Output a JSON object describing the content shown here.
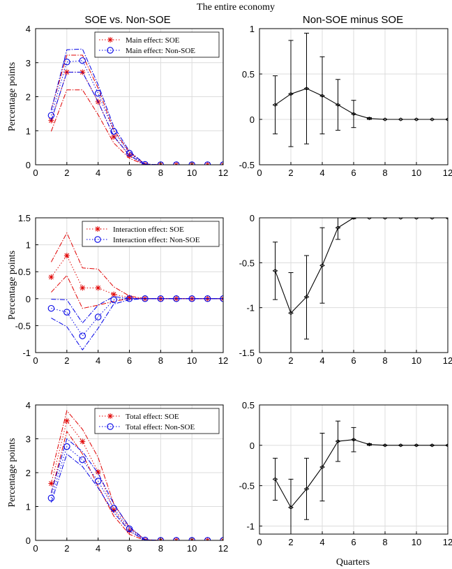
{
  "figure": {
    "suptitle": "The entire economy",
    "col_titles": [
      "SOE vs. Non-SOE",
      "Non-SOE minus SOE"
    ],
    "ylabel": "Percentage points",
    "xlabel_bottom_right": "Quarters",
    "colors": {
      "soe": "#e00000",
      "nonsoe": "#0000e6",
      "diff": "#000000",
      "grid": "#dcdcdc"
    }
  },
  "chart_data": [
    {
      "id": "main-effect",
      "type": "line",
      "x": [
        1,
        2,
        3,
        4,
        5,
        6,
        7,
        8,
        9,
        10,
        11,
        12
      ],
      "xlim": [
        0,
        12
      ],
      "xticks": [
        0,
        2,
        4,
        6,
        8,
        10,
        12
      ],
      "ylim": [
        0,
        4
      ],
      "yticks": [
        0,
        1,
        2,
        3,
        4
      ],
      "ytick_labels": [
        "0",
        "1",
        "2",
        "3",
        "4"
      ],
      "grid": true,
      "legend": "top-right",
      "series": [
        {
          "name": "Main effect: SOE",
          "marker": "*",
          "color": "#e00000",
          "values": [
            1.3,
            2.72,
            2.72,
            1.85,
            0.82,
            0.27,
            0.0,
            0.0,
            0.0,
            0.0,
            0.0,
            0.0
          ],
          "upper": [
            1.62,
            3.22,
            3.22,
            2.25,
            1.02,
            0.37,
            0.02,
            0.0,
            0.0,
            0.0,
            0.0,
            0.0
          ],
          "lower": [
            0.98,
            2.2,
            2.2,
            1.47,
            0.64,
            0.19,
            0.0,
            0.0,
            0.0,
            0.0,
            0.0,
            0.0
          ]
        },
        {
          "name": "Main effect: Non-SOE",
          "marker": "o",
          "color": "#0000e6",
          "values": [
            1.45,
            3.02,
            3.06,
            2.1,
            0.98,
            0.34,
            0.01,
            0.0,
            0.0,
            0.0,
            0.0,
            0.0
          ],
          "upper": [
            1.6,
            3.38,
            3.4,
            2.35,
            1.12,
            0.4,
            0.02,
            0.0,
            0.0,
            0.0,
            0.0,
            0.0
          ],
          "lower": [
            1.3,
            2.72,
            2.72,
            1.85,
            0.84,
            0.28,
            0.0,
            0.0,
            0.0,
            0.0,
            0.0,
            0.0
          ]
        }
      ]
    },
    {
      "id": "main-diff",
      "type": "line",
      "x": [
        1,
        2,
        3,
        4,
        5,
        6,
        7,
        8,
        9,
        10,
        11,
        12
      ],
      "xlim": [
        0,
        12
      ],
      "xticks": [
        0,
        2,
        4,
        6,
        8,
        10,
        12
      ],
      "ylim": [
        -0.5,
        1
      ],
      "yticks": [
        -0.5,
        0,
        0.5,
        1
      ],
      "ytick_labels": [
        "-0.5",
        "0",
        "0.5",
        "1"
      ],
      "grid": true,
      "series": [
        {
          "color": "#000000",
          "values": [
            0.16,
            0.28,
            0.34,
            0.26,
            0.16,
            0.06,
            0.01,
            0.0,
            0.0,
            0.0,
            0.0,
            0.0
          ],
          "upper": [
            0.48,
            0.87,
            0.95,
            0.69,
            0.44,
            0.21,
            0.02,
            0.0,
            0.0,
            0.0,
            0.0,
            0.0
          ],
          "lower": [
            -0.16,
            -0.3,
            -0.27,
            -0.16,
            -0.12,
            -0.09,
            0.0,
            0.0,
            0.0,
            0.0,
            0.0,
            0.0
          ]
        }
      ]
    },
    {
      "id": "interaction-effect",
      "type": "line",
      "x": [
        1,
        2,
        3,
        4,
        5,
        6,
        7,
        8,
        9,
        10,
        11,
        12
      ],
      "xlim": [
        0,
        12
      ],
      "xticks": [
        0,
        2,
        4,
        6,
        8,
        10,
        12
      ],
      "ylim": [
        -1,
        1.5
      ],
      "yticks": [
        -1,
        -0.5,
        0,
        0.5,
        1,
        1.5
      ],
      "ytick_labels": [
        "-1",
        "-0.5",
        "0",
        "0.5",
        "1",
        "1.5"
      ],
      "grid": true,
      "legend": "top-right",
      "series": [
        {
          "name": "Interaction effect: SOE",
          "marker": "*",
          "color": "#e00000",
          "values": [
            0.4,
            0.8,
            0.2,
            0.2,
            0.08,
            0.02,
            0.0,
            0.0,
            0.0,
            0.0,
            0.0,
            0.0
          ],
          "upper": [
            0.68,
            1.22,
            0.57,
            0.55,
            0.22,
            0.05,
            0.0,
            0.0,
            0.0,
            0.0,
            0.0,
            0.0
          ],
          "lower": [
            0.12,
            0.43,
            -0.18,
            -0.12,
            -0.05,
            0.0,
            0.0,
            0.0,
            0.0,
            0.0,
            0.0,
            0.0
          ]
        },
        {
          "name": "Interaction effect: Non-SOE",
          "marker": "o",
          "color": "#0000e6",
          "values": [
            -0.18,
            -0.25,
            -0.69,
            -0.34,
            -0.02,
            0.0,
            0.0,
            0.0,
            0.0,
            0.0,
            0.0,
            0.0
          ],
          "upper": [
            -0.01,
            -0.02,
            -0.45,
            -0.12,
            0.04,
            0.0,
            0.0,
            0.0,
            0.0,
            0.0,
            0.0,
            0.0
          ],
          "lower": [
            -0.36,
            -0.52,
            -0.95,
            -0.55,
            -0.1,
            -0.02,
            0.0,
            0.0,
            0.0,
            0.0,
            0.0,
            0.0
          ]
        }
      ]
    },
    {
      "id": "interaction-diff",
      "type": "line",
      "x": [
        1,
        2,
        3,
        4,
        5,
        6,
        7,
        8,
        9,
        10,
        11,
        12
      ],
      "xlim": [
        0,
        12
      ],
      "xticks": [
        0,
        2,
        4,
        6,
        8,
        10,
        12
      ],
      "ylim": [
        -1.5,
        0
      ],
      "yticks": [
        -1.5,
        -1,
        -0.5,
        0
      ],
      "ytick_labels": [
        "-1.5",
        "-1",
        "-0.5",
        "0"
      ],
      "grid": true,
      "series": [
        {
          "color": "#000000",
          "values": [
            -0.59,
            -1.06,
            -0.88,
            -0.53,
            -0.11,
            0.0,
            0.0,
            0.0,
            0.0,
            0.0,
            0.0,
            0.0
          ],
          "upper": [
            -0.27,
            -0.61,
            -0.42,
            -0.11,
            0.0,
            0.0,
            0.0,
            0.0,
            0.0,
            0.0,
            0.0,
            0.0
          ],
          "lower": [
            -0.91,
            -1.53,
            -1.35,
            -0.95,
            -0.24,
            -0.01,
            0.0,
            0.0,
            0.0,
            0.0,
            0.0,
            0.0
          ]
        }
      ]
    },
    {
      "id": "total-effect",
      "type": "line",
      "x": [
        1,
        2,
        3,
        4,
        5,
        6,
        7,
        8,
        9,
        10,
        11,
        12
      ],
      "xlim": [
        0,
        12
      ],
      "xticks": [
        0,
        2,
        4,
        6,
        8,
        10,
        12
      ],
      "ylim": [
        0,
        4
      ],
      "yticks": [
        0,
        1,
        2,
        3,
        4
      ],
      "ytick_labels": [
        "0",
        "1",
        "2",
        "3",
        "4"
      ],
      "grid": true,
      "legend": "top-right",
      "series": [
        {
          "name": "Total effect: SOE",
          "marker": "*",
          "color": "#e00000",
          "values": [
            1.68,
            3.53,
            2.92,
            2.02,
            0.9,
            0.28,
            0.0,
            0.0,
            0.0,
            0.0,
            0.0,
            0.0
          ],
          "upper": [
            1.95,
            3.83,
            3.28,
            2.45,
            1.08,
            0.38,
            0.02,
            0.0,
            0.0,
            0.0,
            0.0,
            0.0
          ],
          "lower": [
            1.4,
            3.22,
            2.55,
            1.6,
            0.72,
            0.18,
            0.0,
            0.0,
            0.0,
            0.0,
            0.0,
            0.0
          ]
        },
        {
          "name": "Total effect: Non-SOE",
          "marker": "o",
          "color": "#0000e6",
          "values": [
            1.25,
            2.77,
            2.38,
            1.75,
            0.95,
            0.34,
            0.01,
            0.0,
            0.0,
            0.0,
            0.0,
            0.0
          ],
          "upper": [
            1.4,
            3.0,
            2.62,
            1.98,
            1.08,
            0.4,
            0.02,
            0.0,
            0.0,
            0.0,
            0.0,
            0.0
          ],
          "lower": [
            1.12,
            2.55,
            2.18,
            1.55,
            0.82,
            0.28,
            0.0,
            0.0,
            0.0,
            0.0,
            0.0,
            0.0
          ]
        }
      ]
    },
    {
      "id": "total-diff",
      "type": "line",
      "x": [
        1,
        2,
        3,
        4,
        5,
        6,
        7,
        8,
        9,
        10,
        11,
        12
      ],
      "xlim": [
        0,
        12
      ],
      "xticks": [
        0,
        2,
        4,
        6,
        8,
        10,
        12
      ],
      "ylim": [
        -1.1,
        0.5
      ],
      "yticks": [
        -1,
        -0.5,
        0,
        0.5
      ],
      "ytick_labels": [
        "-1",
        "-0.5",
        "0",
        "0.5"
      ],
      "grid": true,
      "series": [
        {
          "color": "#000000",
          "values": [
            -0.42,
            -0.77,
            -0.54,
            -0.27,
            0.05,
            0.07,
            0.01,
            0.0,
            0.0,
            0.0,
            0.0,
            0.0
          ],
          "upper": [
            -0.16,
            -0.42,
            -0.16,
            0.15,
            0.3,
            0.22,
            0.02,
            0.0,
            0.0,
            0.0,
            0.0,
            0.0
          ],
          "lower": [
            -0.68,
            -1.1,
            -0.92,
            -0.69,
            -0.2,
            -0.08,
            0.0,
            0.0,
            0.0,
            0.0,
            0.0,
            0.0
          ]
        }
      ]
    }
  ]
}
